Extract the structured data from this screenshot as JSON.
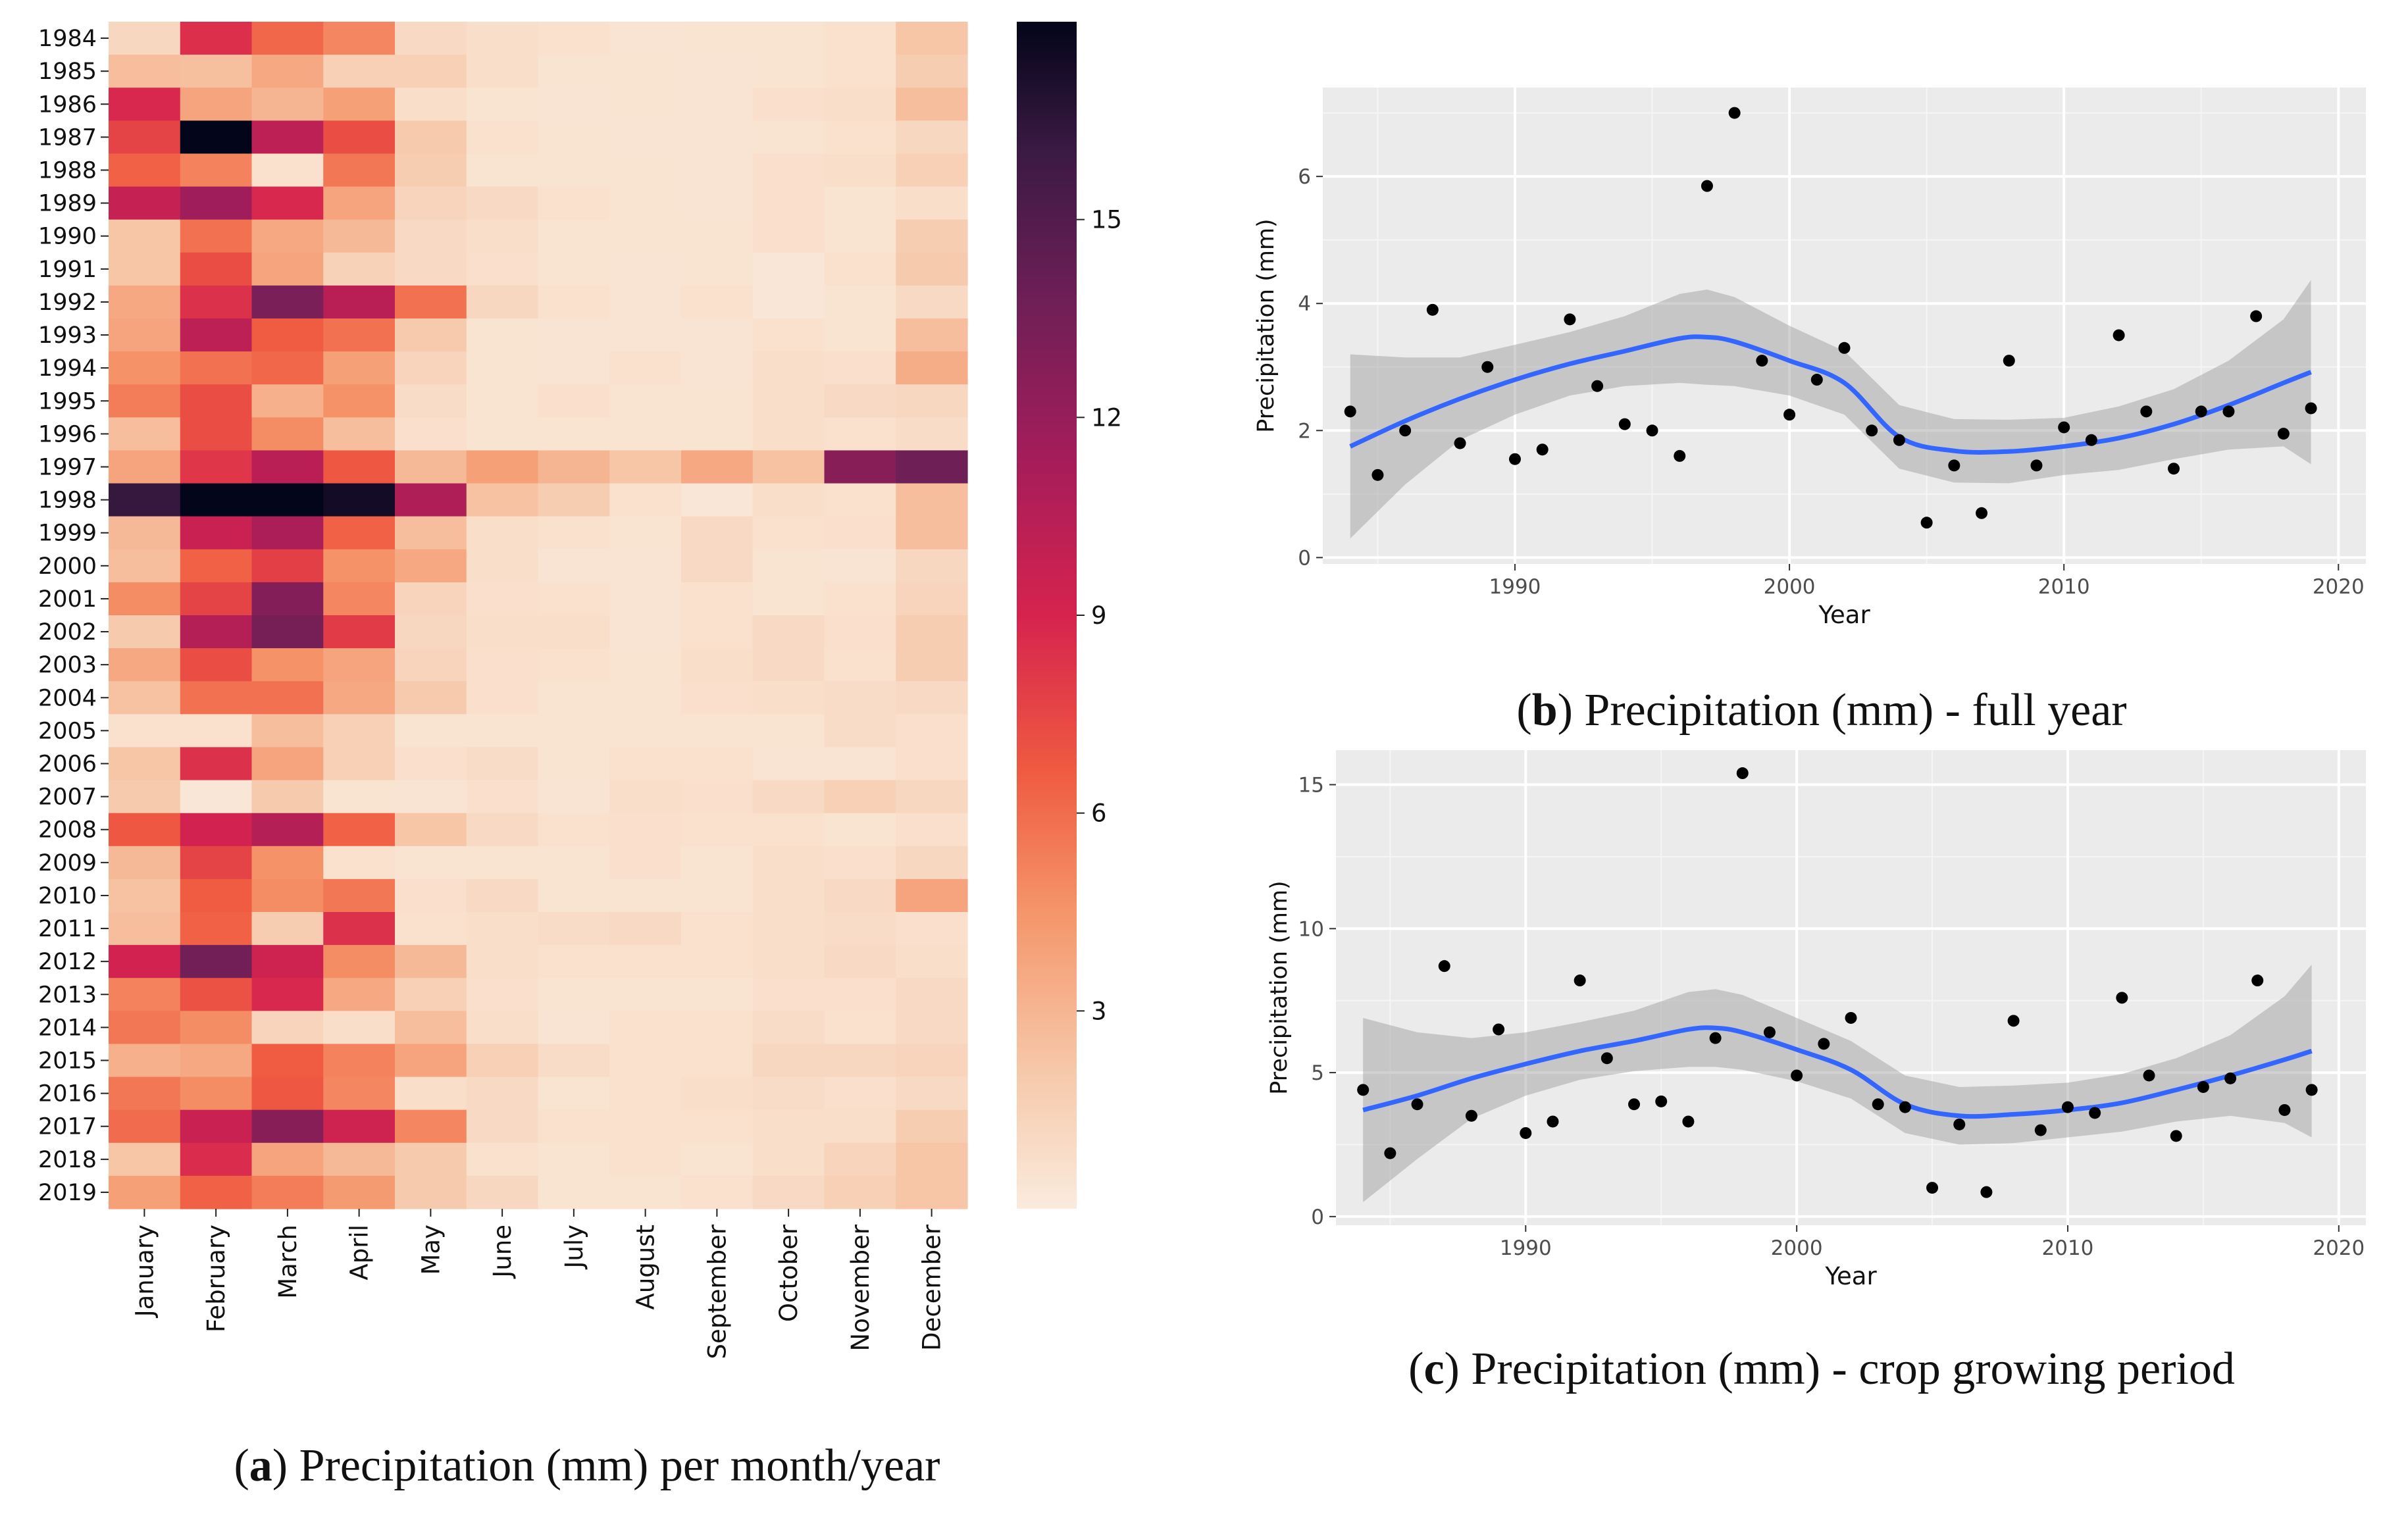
{
  "heatmap": {
    "months": [
      "January",
      "February",
      "March",
      "April",
      "May",
      "June",
      "July",
      "August",
      "September",
      "October",
      "November",
      "December"
    ],
    "years": [
      "1984",
      "1985",
      "1986",
      "1987",
      "1988",
      "1989",
      "1990",
      "1991",
      "1992",
      "1993",
      "1994",
      "1995",
      "1996",
      "1997",
      "1998",
      "1999",
      "2000",
      "2001",
      "2002",
      "2003",
      "2004",
      "2005",
      "2006",
      "2007",
      "2008",
      "2009",
      "2010",
      "2011",
      "2012",
      "2013",
      "2014",
      "2015",
      "2016",
      "2017",
      "2018",
      "2019"
    ],
    "values": [
      [
        1.2,
        8.5,
        6.2,
        5.0,
        1.0,
        0.8,
        0.6,
        0.4,
        0.5,
        0.5,
        0.6,
        2.2
      ],
      [
        2.6,
        2.5,
        3.6,
        1.6,
        1.6,
        0.8,
        0.5,
        0.5,
        0.4,
        0.5,
        0.6,
        1.8
      ],
      [
        8.8,
        3.8,
        3.0,
        4.0,
        0.8,
        0.5,
        0.4,
        0.5,
        0.4,
        0.7,
        0.8,
        2.6
      ],
      [
        7.6,
        18.0,
        10.2,
        7.2,
        2.0,
        0.6,
        0.5,
        0.4,
        0.4,
        0.5,
        0.6,
        1.2
      ],
      [
        6.4,
        5.2,
        0.6,
        5.6,
        1.8,
        0.5,
        0.5,
        0.5,
        0.4,
        0.7,
        0.8,
        1.6
      ],
      [
        9.8,
        11.6,
        8.8,
        3.8,
        1.4,
        1.0,
        0.6,
        0.5,
        0.4,
        0.7,
        0.5,
        0.8
      ],
      [
        2.2,
        5.8,
        3.6,
        2.8,
        1.0,
        0.8,
        0.5,
        0.5,
        0.5,
        0.7,
        0.5,
        1.8
      ],
      [
        2.2,
        7.2,
        3.8,
        1.5,
        1.0,
        0.7,
        0.5,
        0.4,
        0.5,
        0.3,
        0.6,
        2.0
      ],
      [
        3.6,
        8.4,
        13.2,
        10.4,
        5.8,
        1.2,
        0.6,
        0.4,
        0.6,
        0.3,
        0.5,
        1.0
      ],
      [
        3.8,
        10.2,
        6.6,
        5.8,
        2.0,
        0.5,
        0.4,
        0.4,
        0.4,
        0.6,
        0.5,
        2.6
      ],
      [
        4.6,
        5.8,
        6.2,
        4.0,
        1.4,
        0.5,
        0.4,
        0.6,
        0.4,
        0.8,
        0.7,
        3.4
      ],
      [
        5.4,
        7.2,
        3.2,
        4.6,
        0.9,
        0.5,
        0.7,
        0.5,
        0.5,
        0.8,
        1.0,
        1.2
      ],
      [
        2.6,
        7.2,
        4.8,
        2.6,
        0.7,
        0.5,
        0.5,
        0.5,
        0.5,
        0.8,
        0.6,
        0.9
      ],
      [
        3.8,
        8.2,
        10.4,
        6.8,
        2.8,
        4.0,
        3.0,
        2.2,
        3.6,
        2.4,
        12.6,
        13.8
      ],
      [
        16.2,
        18.0,
        18.0,
        17.4,
        10.8,
        2.4,
        1.8,
        0.6,
        0.3,
        0.8,
        0.6,
        2.6
      ],
      [
        2.8,
        9.6,
        11.0,
        6.4,
        2.6,
        0.8,
        0.6,
        0.5,
        1.0,
        0.6,
        0.7,
        2.6
      ],
      [
        2.6,
        6.4,
        7.8,
        4.6,
        3.6,
        0.8,
        0.4,
        0.4,
        1.0,
        0.5,
        0.4,
        1.2
      ],
      [
        4.8,
        7.6,
        12.8,
        5.0,
        1.4,
        0.7,
        0.6,
        0.4,
        0.6,
        0.5,
        0.6,
        1.4
      ],
      [
        2.0,
        10.6,
        13.4,
        8.0,
        1.2,
        0.8,
        0.8,
        0.4,
        0.6,
        1.0,
        0.7,
        1.8
      ],
      [
        3.6,
        7.2,
        4.6,
        3.8,
        1.4,
        0.7,
        0.6,
        0.5,
        0.8,
        1.0,
        0.6,
        1.8
      ],
      [
        2.4,
        5.8,
        5.8,
        3.6,
        2.0,
        0.7,
        0.5,
        0.5,
        0.7,
        0.8,
        0.9,
        1.0
      ],
      [
        0.6,
        0.6,
        2.6,
        1.6,
        0.5,
        0.5,
        0.5,
        0.5,
        0.5,
        0.5,
        0.9,
        0.7
      ],
      [
        2.2,
        8.4,
        3.8,
        1.6,
        0.7,
        0.9,
        0.5,
        0.6,
        0.6,
        0.4,
        0.4,
        0.7
      ],
      [
        2.0,
        0.3,
        2.0,
        0.5,
        0.4,
        0.7,
        0.4,
        0.8,
        0.7,
        1.0,
        1.6,
        1.2
      ],
      [
        6.8,
        9.2,
        10.6,
        6.4,
        2.2,
        1.0,
        0.6,
        0.7,
        0.6,
        0.6,
        0.5,
        0.7
      ],
      [
        2.8,
        7.6,
        4.6,
        0.6,
        0.5,
        0.5,
        0.5,
        0.7,
        0.5,
        0.8,
        0.7,
        1.2
      ],
      [
        2.4,
        6.6,
        4.8,
        5.6,
        0.7,
        1.0,
        0.5,
        0.5,
        0.5,
        0.8,
        1.0,
        3.8
      ],
      [
        2.6,
        6.4,
        1.8,
        8.4,
        0.6,
        0.8,
        0.9,
        1.0,
        0.6,
        0.8,
        0.9,
        0.7
      ],
      [
        9.2,
        13.6,
        9.4,
        4.8,
        2.8,
        0.8,
        0.6,
        0.6,
        0.6,
        0.8,
        1.0,
        0.8
      ],
      [
        5.2,
        7.0,
        8.8,
        3.6,
        1.6,
        0.7,
        0.5,
        0.5,
        0.5,
        0.7,
        0.7,
        1.0
      ],
      [
        5.6,
        4.8,
        1.4,
        0.8,
        2.6,
        0.8,
        0.4,
        0.6,
        0.6,
        0.9,
        0.6,
        1.0
      ],
      [
        3.2,
        3.6,
        6.6,
        5.2,
        3.8,
        1.6,
        0.9,
        0.6,
        0.6,
        1.2,
        1.2,
        1.4
      ],
      [
        5.6,
        4.8,
        6.8,
        5.0,
        0.8,
        1.0,
        0.5,
        0.6,
        0.8,
        0.9,
        0.7,
        1.0
      ],
      [
        6.0,
        9.6,
        12.6,
        9.4,
        5.0,
        1.0,
        0.6,
        0.6,
        0.6,
        0.8,
        0.8,
        1.8
      ],
      [
        2.2,
        8.6,
        3.8,
        2.8,
        2.0,
        0.6,
        0.5,
        0.6,
        0.5,
        0.8,
        1.4,
        2.2
      ],
      [
        4.0,
        6.4,
        5.4,
        4.2,
        2.0,
        1.2,
        0.5,
        0.5,
        0.6,
        1.0,
        1.6,
        2.2
      ]
    ],
    "colorbar_ticks": [
      "3",
      "6",
      "9",
      "12",
      "15"
    ],
    "caption_letter": "a",
    "caption_text": ") Precipitation (mm) per month/year"
  },
  "chart_data": [
    {
      "type": "heatmap",
      "title": "(a) Precipitation (mm) per month/year",
      "rows": "years 1984-2019",
      "columns": "months January-December",
      "zlim": [
        0,
        18
      ],
      "note": "cell values stored in heatmap.values"
    },
    {
      "type": "scatter",
      "title": "(b) Precipitation (mm) - full year",
      "xlabel": "Year",
      "ylabel": "Precipitation (mm)",
      "xlim": [
        1983,
        2021
      ],
      "ylim": [
        -0.1,
        7.4
      ],
      "xticks": [
        "1990",
        "2000",
        "2010",
        "2020"
      ],
      "yticks": [
        "0",
        "2",
        "4",
        "6"
      ],
      "x": [
        1984,
        1985,
        1986,
        1987,
        1988,
        1989,
        1990,
        1991,
        1992,
        1993,
        1994,
        1995,
        1996,
        1997,
        1998,
        1999,
        2000,
        2001,
        2002,
        2003,
        2004,
        2005,
        2006,
        2007,
        2008,
        2009,
        2010,
        2011,
        2012,
        2013,
        2014,
        2015,
        2016,
        2017,
        2018,
        2019
      ],
      "y": [
        2.3,
        1.3,
        2.0,
        3.9,
        1.8,
        3.0,
        1.55,
        1.7,
        3.75,
        2.7,
        2.1,
        2.0,
        1.6,
        5.85,
        7.0,
        3.1,
        2.25,
        2.8,
        3.3,
        2.0,
        1.85,
        0.55,
        1.45,
        0.7,
        3.1,
        1.45,
        2.05,
        1.85,
        3.5,
        2.3,
        1.4,
        2.3,
        2.3,
        3.8,
        1.95,
        2.35
      ],
      "smooth_x": [
        1984,
        1986,
        1988,
        1990,
        1992,
        1994,
        1996,
        1997,
        1998,
        2000,
        2002,
        2004,
        2006,
        2008,
        2010,
        2012,
        2014,
        2016,
        2018,
        2019
      ],
      "smooth_y": [
        1.75,
        2.15,
        2.5,
        2.8,
        3.05,
        3.25,
        3.45,
        3.47,
        3.4,
        3.1,
        2.75,
        1.9,
        1.68,
        1.67,
        1.75,
        1.88,
        2.1,
        2.4,
        2.75,
        2.92
      ],
      "band_half_width": [
        1.45,
        1.0,
        0.65,
        0.55,
        0.5,
        0.55,
        0.7,
        0.75,
        0.7,
        0.55,
        0.5,
        0.5,
        0.5,
        0.5,
        0.45,
        0.5,
        0.55,
        0.7,
        1.0,
        1.45
      ]
    },
    {
      "type": "scatter",
      "title": "(c) Precipitation (mm) - crop growing period",
      "xlabel": "Year",
      "ylabel": "Precipitation (mm)",
      "xlim": [
        1983,
        2021
      ],
      "ylim": [
        -0.3,
        16.2
      ],
      "xticks": [
        "1990",
        "2000",
        "2010",
        "2020"
      ],
      "yticks": [
        "0",
        "5",
        "10",
        "15"
      ],
      "x": [
        1984,
        1985,
        1986,
        1987,
        1988,
        1989,
        1990,
        1991,
        1992,
        1993,
        1994,
        1995,
        1996,
        1997,
        1998,
        1999,
        2000,
        2001,
        2002,
        2003,
        2004,
        2005,
        2006,
        2007,
        2008,
        2009,
        2010,
        2011,
        2012,
        2013,
        2014,
        2015,
        2016,
        2017,
        2018,
        2019
      ],
      "y": [
        4.4,
        2.2,
        3.9,
        8.7,
        3.5,
        6.5,
        2.9,
        3.3,
        8.2,
        5.5,
        3.9,
        4.0,
        3.3,
        6.2,
        15.4,
        6.4,
        4.9,
        6.0,
        6.9,
        3.9,
        3.8,
        1.0,
        3.2,
        0.85,
        6.8,
        3.0,
        3.8,
        3.6,
        7.6,
        4.9,
        2.8,
        4.5,
        4.8,
        8.2,
        3.7,
        4.4
      ],
      "smooth_x": [
        1984,
        1986,
        1988,
        1990,
        1992,
        1994,
        1996,
        1997,
        1998,
        2000,
        2002,
        2004,
        2006,
        2008,
        2010,
        2012,
        2014,
        2016,
        2018,
        2019
      ],
      "smooth_y": [
        3.7,
        4.2,
        4.8,
        5.3,
        5.75,
        6.1,
        6.5,
        6.55,
        6.4,
        5.8,
        5.1,
        3.9,
        3.5,
        3.55,
        3.7,
        3.95,
        4.4,
        4.9,
        5.45,
        5.75
      ],
      "band_half_width": [
        3.2,
        2.2,
        1.4,
        1.1,
        1.0,
        1.05,
        1.3,
        1.35,
        1.3,
        1.1,
        1.0,
        1.0,
        1.0,
        1.0,
        0.95,
        1.0,
        1.1,
        1.4,
        2.2,
        3.0
      ]
    }
  ],
  "panel_b": {
    "caption_letter": "b",
    "caption_text": ") Precipitation (mm) - full year"
  },
  "panel_c": {
    "caption_letter": "c",
    "caption_text": ") Precipitation (mm) - crop growing period"
  }
}
